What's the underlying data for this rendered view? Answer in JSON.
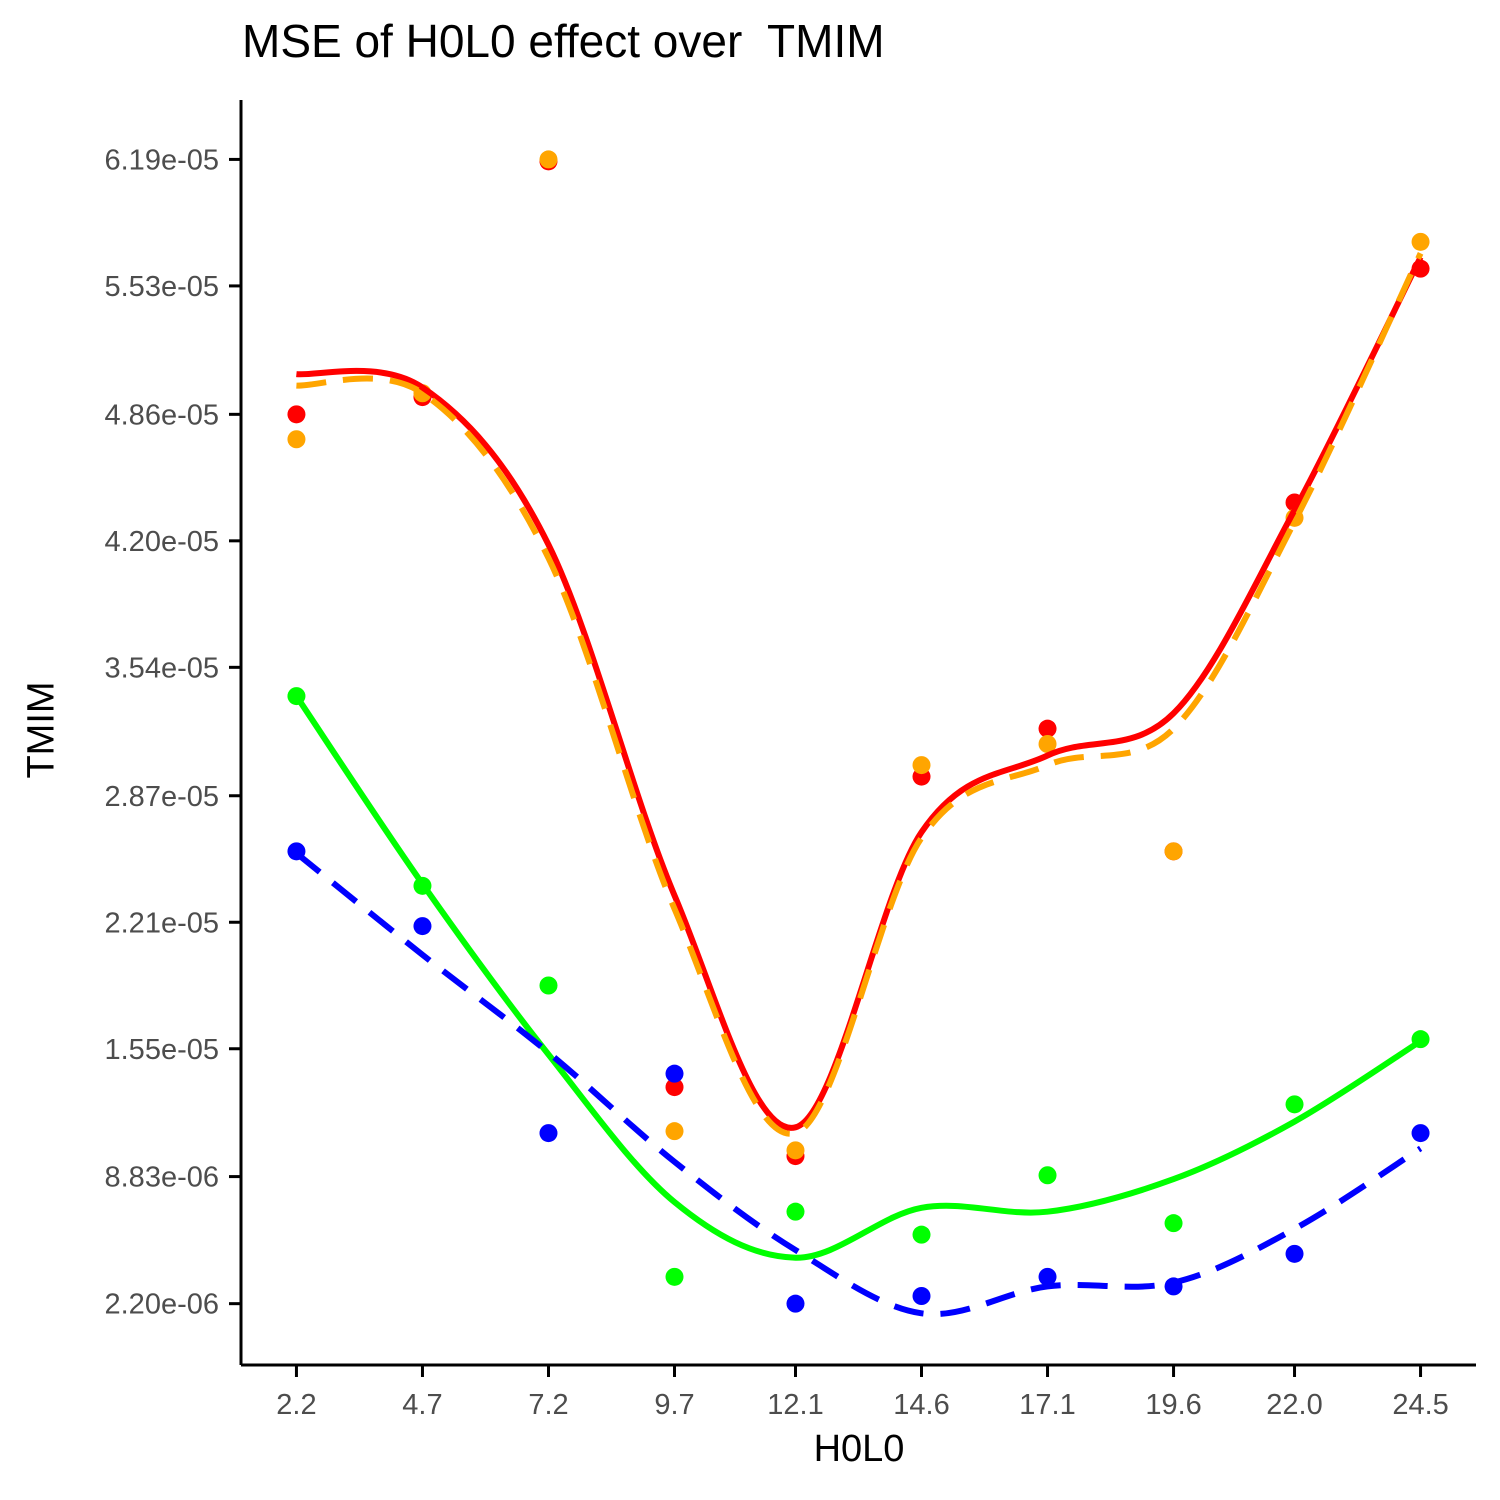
{
  "chart_data": {
    "type": "scatter",
    "title": "MSE of H0L0 effect over  TMIM",
    "xlabel": "H0L0",
    "ylabel": "TMIM",
    "x_ticks": [
      "2.2",
      "4.7",
      "7.2",
      "9.7",
      "12.1",
      "14.6",
      "17.1",
      "19.6",
      "22.0",
      "24.5"
    ],
    "x": [
      2.2,
      4.7,
      7.2,
      9.7,
      12.1,
      14.6,
      17.1,
      19.6,
      22.0,
      24.5
    ],
    "xlim": [
      1.1,
      25.6
    ],
    "y_ticks": [
      "2.20e-06",
      "8.83e-06",
      "1.55e-05",
      "2.21e-05",
      "2.87e-05",
      "3.54e-05",
      "4.20e-05",
      "4.86e-05",
      "5.53e-05",
      "6.19e-05"
    ],
    "ylim": [
      -1e-06,
      6.5e-05
    ],
    "grid": false,
    "legend": "none",
    "series": [
      {
        "color": "#ff0000",
        "values": [
          4.86e-05,
          4.95e-05,
          6.18e-05,
          1.35e-05,
          9.9e-06,
          2.97e-05,
          3.22e-05,
          2.58e-05,
          4.4e-05,
          5.62e-05
        ],
        "smooth": [
          5.07e-05,
          5e-05,
          4.18e-05,
          2.35e-05,
          1.14e-05,
          2.68e-05,
          3.08e-05,
          3.3e-05,
          4.36e-05,
          5.68e-05
        ],
        "line_style": "solid"
      },
      {
        "color": "#ffa500",
        "values": [
          4.73e-05,
          4.97e-05,
          6.19e-05,
          1.12e-05,
          1.02e-05,
          3.03e-05,
          3.14e-05,
          2.58e-05,
          4.32e-05,
          5.76e-05
        ],
        "smooth": [
          5.01e-05,
          4.97e-05,
          4.11e-05,
          2.28e-05,
          1.11e-05,
          2.65e-05,
          3.03e-05,
          3.22e-05,
          4.3e-05,
          5.7e-05
        ],
        "line_style": "dashed"
      },
      {
        "color": "#00ff00",
        "values": [
          3.39e-05,
          2.4e-05,
          1.88e-05,
          3.6e-06,
          7e-06,
          5.8e-06,
          8.9e-06,
          6.4e-06,
          1.26e-05,
          1.6e-05
        ],
        "smooth": [
          3.39e-05,
          2.41e-05,
          1.52e-05,
          7.5e-06,
          4.6e-06,
          7.2e-06,
          7e-06,
          8.7e-06,
          1.17e-05,
          1.59e-05
        ],
        "line_style": "solid"
      },
      {
        "color": "#0000ff",
        "values": [
          2.58e-05,
          2.19e-05,
          1.11e-05,
          1.42e-05,
          2.2e-06,
          2.6e-06,
          3.6e-06,
          3.1e-06,
          4.8e-06,
          1.11e-05
        ],
        "smooth": [
          2.57e-05,
          2.04e-05,
          1.53e-05,
          9.6e-06,
          5e-06,
          1.7e-06,
          3.1e-06,
          3.3e-06,
          6.1e-06,
          1.03e-05
        ],
        "line_style": "dashed"
      }
    ]
  }
}
